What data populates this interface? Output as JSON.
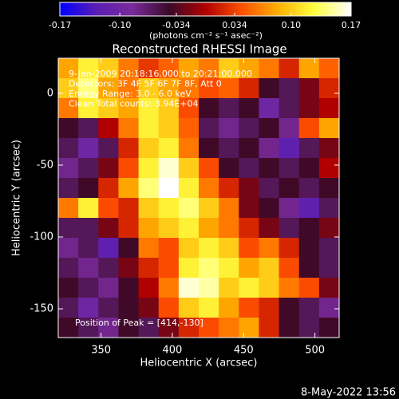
{
  "chart_data": {
    "type": "heatmap",
    "title": "Reconstructed RHESSI Image",
    "xlabel": "Heliocentric X (arcsec)",
    "ylabel": "Heliocentric Y (arcsec)",
    "colorbar_label": "(photons cm⁻² s⁻¹ asec⁻²)",
    "annotations": [
      "9-Jan-2009 20:18:16.000 to 20:21:00.000",
      "Detectors: 3F 4F 5F 6F 7F 8F, Att 0",
      "Energy Range: 3.0 - 6.0 keV",
      "Clean    Total counts: 3.94E+04"
    ],
    "peak_label": "Position of Peak = [414,-130]",
    "footer": "8-May-2022 13:56",
    "xlim": [
      320,
      517
    ],
    "ylim": [
      -170,
      24.4
    ],
    "xticks": [
      350,
      400,
      450,
      500
    ],
    "yticks": [
      0,
      -50,
      -100,
      -150
    ],
    "clim": [
      -0.17,
      0.17
    ],
    "cticks": [
      -0.17,
      {
        "value": -0.1,
        "label": "-0.10"
      },
      -0.034,
      0.034,
      {
        "value": 0.1,
        "label": "0.10"
      },
      0.17
    ],
    "colormap": [
      "#0000ff",
      "#5a1eb4",
      "#7a2a9a",
      "#3a0a2a",
      "#b00000",
      "#ff5000",
      "#ffb000",
      "#ffff40",
      "#ffffff"
    ],
    "z": [
      [
        0.08,
        0.12,
        0.1,
        0.06,
        0.03,
        0.05,
        0.08,
        0.06,
        0.1,
        0.08,
        0.06,
        0.02,
        0.08,
        0.05
      ],
      [
        0.1,
        0.14,
        0.08,
        0.06,
        0.1,
        0.08,
        0.06,
        0.04,
        0.05,
        0.02,
        -0.04,
        -0.06,
        -0.02,
        0.02
      ],
      [
        0.06,
        0.12,
        0.1,
        0.08,
        0.12,
        0.1,
        0.04,
        -0.04,
        -0.06,
        -0.04,
        -0.1,
        -0.06,
        -0.02,
        0.0
      ],
      [
        -0.04,
        -0.06,
        0.0,
        0.06,
        0.12,
        0.1,
        0.05,
        -0.06,
        -0.08,
        -0.06,
        -0.04,
        -0.08,
        0.04,
        0.08
      ],
      [
        -0.06,
        -0.1,
        -0.06,
        0.02,
        0.1,
        0.12,
        0.06,
        -0.04,
        -0.06,
        -0.04,
        -0.08,
        -0.12,
        -0.06,
        -0.02
      ],
      [
        -0.08,
        -0.06,
        -0.02,
        0.04,
        0.12,
        0.16,
        0.1,
        0.04,
        -0.04,
        -0.06,
        -0.04,
        -0.06,
        -0.04,
        0.0
      ],
      [
        -0.06,
        -0.04,
        0.02,
        0.08,
        0.14,
        0.17,
        0.12,
        0.06,
        0.02,
        -0.02,
        -0.06,
        -0.04,
        -0.06,
        -0.04
      ],
      [
        0.06,
        0.12,
        0.04,
        0.02,
        0.1,
        0.12,
        0.14,
        0.1,
        0.06,
        -0.02,
        -0.04,
        -0.08,
        -0.12,
        -0.06
      ],
      [
        -0.06,
        -0.06,
        -0.02,
        0.02,
        0.08,
        0.1,
        0.12,
        0.08,
        0.06,
        0.02,
        -0.02,
        -0.06,
        -0.04,
        -0.02
      ],
      [
        -0.08,
        -0.06,
        -0.12,
        -0.04,
        0.06,
        0.04,
        0.1,
        0.12,
        0.1,
        0.04,
        0.06,
        0.02,
        -0.04,
        -0.06
      ],
      [
        -0.06,
        -0.08,
        -0.06,
        -0.02,
        0.02,
        0.04,
        0.12,
        0.14,
        0.12,
        0.08,
        0.1,
        0.04,
        -0.04,
        -0.06
      ],
      [
        -0.04,
        -0.06,
        -0.08,
        -0.04,
        0.0,
        0.06,
        0.16,
        0.15,
        0.1,
        0.12,
        0.1,
        0.06,
        0.04,
        -0.02
      ],
      [
        -0.06,
        -0.1,
        -0.06,
        -0.04,
        -0.02,
        0.04,
        0.1,
        0.12,
        0.08,
        0.04,
        0.02,
        -0.04,
        -0.06,
        -0.08
      ],
      [
        -0.04,
        -0.06,
        -0.08,
        -0.04,
        -0.06,
        -0.02,
        0.02,
        0.04,
        0.06,
        0.08,
        0.02,
        -0.04,
        -0.06,
        -0.04
      ]
    ]
  }
}
